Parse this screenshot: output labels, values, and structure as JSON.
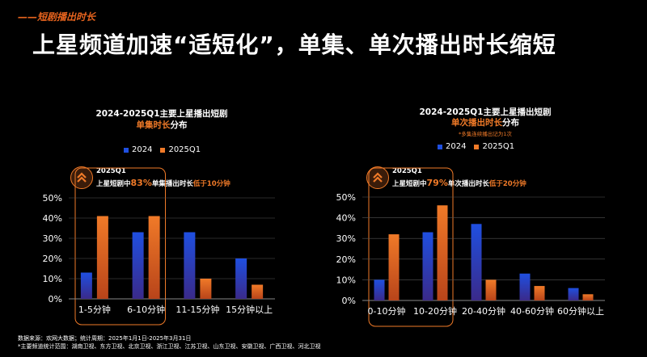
{
  "header": {
    "section_tag": "——短剧播出时长",
    "title": "上星频道加速“适短化”，单集、单次播出时长缩短"
  },
  "charts": [
    {
      "title": "2024-2025Q1主要上星播出短剧",
      "subtitle_highlight": "单集时长",
      "subtitle_rest": "分布",
      "note": "",
      "callout": {
        "period": "2025Q1",
        "text_before": "上星短剧中",
        "percent": "83%",
        "text_mid": "单集播出时长",
        "text_after": "低于10分钟"
      }
    },
    {
      "title": "2024-2025Q1主要上星播出短剧",
      "subtitle_highlight": "单次播出时长",
      "subtitle_rest": "分布",
      "note": "*多集连续播出记为1次",
      "callout": {
        "period": "2025Q1",
        "text_before": "上星短剧中",
        "percent": "79%",
        "text_mid": "单次播出时长",
        "text_after": "低于20分钟"
      }
    }
  ],
  "colors": {
    "series_2024": "#1f4fe0",
    "series_2025": "#f07a28",
    "accent": "#f07a28",
    "grid": "#555555"
  },
  "chart_data": [
    {
      "type": "bar",
      "categories": [
        "1-5分钟",
        "6-10分钟",
        "11-15分钟",
        "15分钟以上"
      ],
      "series": [
        {
          "name": "2024",
          "values": [
            13,
            33,
            33,
            20
          ]
        },
        {
          "name": "2025Q1",
          "values": [
            41,
            41,
            10,
            7
          ]
        }
      ],
      "ylim": [
        0,
        50
      ],
      "yticks": [
        0,
        10,
        20,
        30,
        40,
        50
      ],
      "ytick_labels": [
        "0%",
        "10%",
        "20%",
        "30%",
        "40%",
        "50%"
      ],
      "highlight_categories": [
        0,
        1
      ],
      "grid": true,
      "legend": "top-left"
    },
    {
      "type": "bar",
      "categories": [
        "0-10分钟",
        "10-20分钟",
        "20-40分钟",
        "40-60分钟",
        "60分钟以上"
      ],
      "series": [
        {
          "name": "2024",
          "values": [
            10,
            33,
            37,
            13,
            6
          ]
        },
        {
          "name": "2025Q1",
          "values": [
            32,
            46,
            10,
            7,
            3
          ]
        }
      ],
      "ylim": [
        0,
        50
      ],
      "yticks": [
        0,
        10,
        20,
        30,
        40,
        50
      ],
      "ytick_labels": [
        "0%",
        "10%",
        "20%",
        "30%",
        "40%",
        "50%"
      ],
      "highlight_categories": [
        0,
        1
      ],
      "grid": true,
      "legend": "top-left"
    }
  ],
  "footer": {
    "line1": "数据来源：欢网大数据；统计周期：2025年1月1日-2025年3月31日",
    "line2": "*主要频道统计范围：湖南卫视、东方卫视、北京卫视、浙江卫视、江苏卫视、山东卫视、安徽卫视、广西卫视、河北卫视"
  }
}
